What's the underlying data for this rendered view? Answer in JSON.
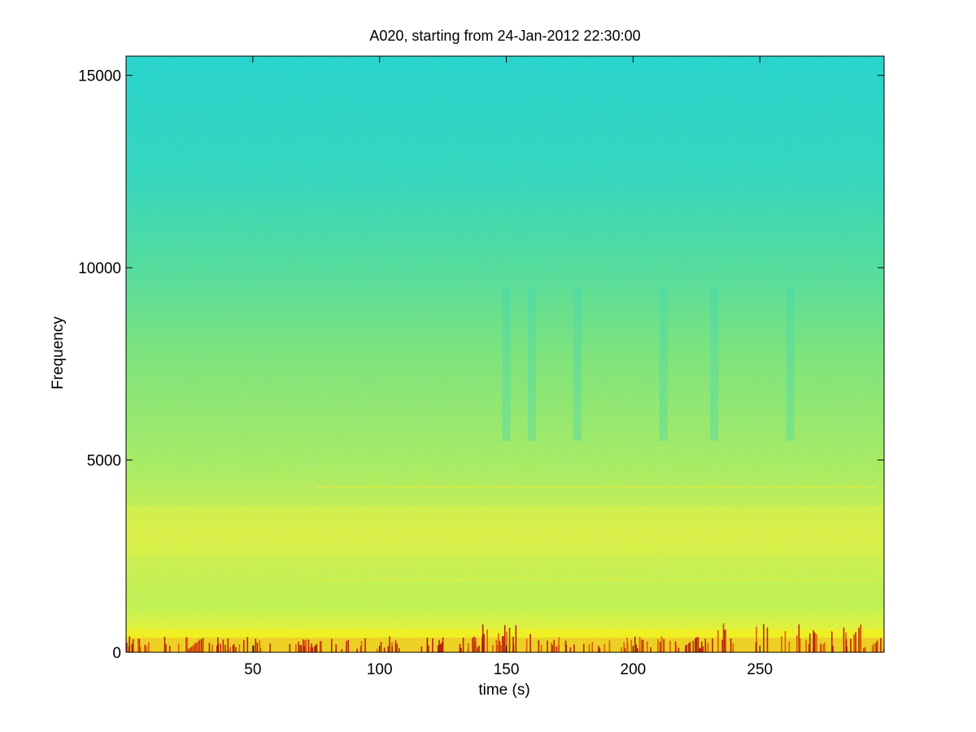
{
  "chart_data": {
    "type": "heatmap",
    "title": "A020, starting from 24-Jan-2012 22:30:00",
    "xlabel": "time (s)",
    "ylabel": "Frequency",
    "xlim": [
      0,
      299
    ],
    "ylim": [
      0,
      15500
    ],
    "xticks": [
      50,
      100,
      150,
      200,
      250
    ],
    "yticks": [
      0,
      5000,
      10000,
      15000
    ],
    "colormap": "jet",
    "colors": {
      "background": "#28d9c7",
      "mid": "#a6f060",
      "high": "#f5f520",
      "peak": "#c0200a"
    },
    "features": {
      "low_freq_band_hz": [
        0,
        600
      ],
      "bright_band_hz": [
        2500,
        3800
      ],
      "tonal_lines_hz": [
        1900,
        4300
      ],
      "quiet_vertical_bands_s": [
        150,
        160,
        178,
        212,
        232,
        262
      ]
    },
    "grid": false
  }
}
